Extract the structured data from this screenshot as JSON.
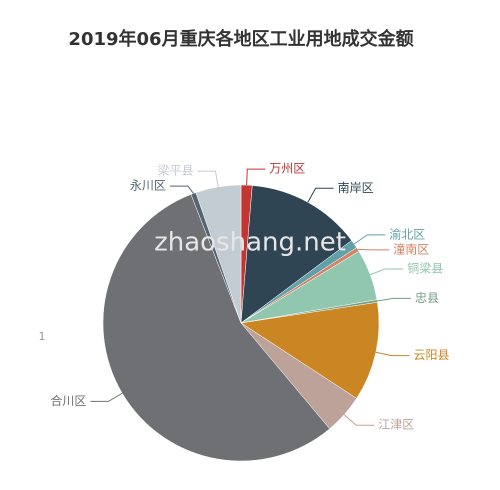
{
  "chart_data": {
    "type": "pie",
    "title": "2019年06月重庆各地区工业用地成交金额",
    "watermark": "zhaoshang.net",
    "annotation": "1",
    "categories": [
      "万州区",
      "南岸区",
      "渝北区",
      "潼南区",
      "铜梁县",
      "忠县",
      "云阳县",
      "江津区",
      "合川区",
      "永川区",
      "梁平县"
    ],
    "values": [
      1.3,
      13.5,
      1.0,
      0.5,
      6.0,
      0.3,
      11.6,
      4.7,
      55.2,
      0.6,
      5.3
    ],
    "colors": [
      "#c23531",
      "#2f4554",
      "#61a0a8",
      "#d48265",
      "#91c7ae",
      "#749f83",
      "#ca8622",
      "#bda29a",
      "#6e7074",
      "#546570",
      "#c4ccd3"
    ]
  }
}
